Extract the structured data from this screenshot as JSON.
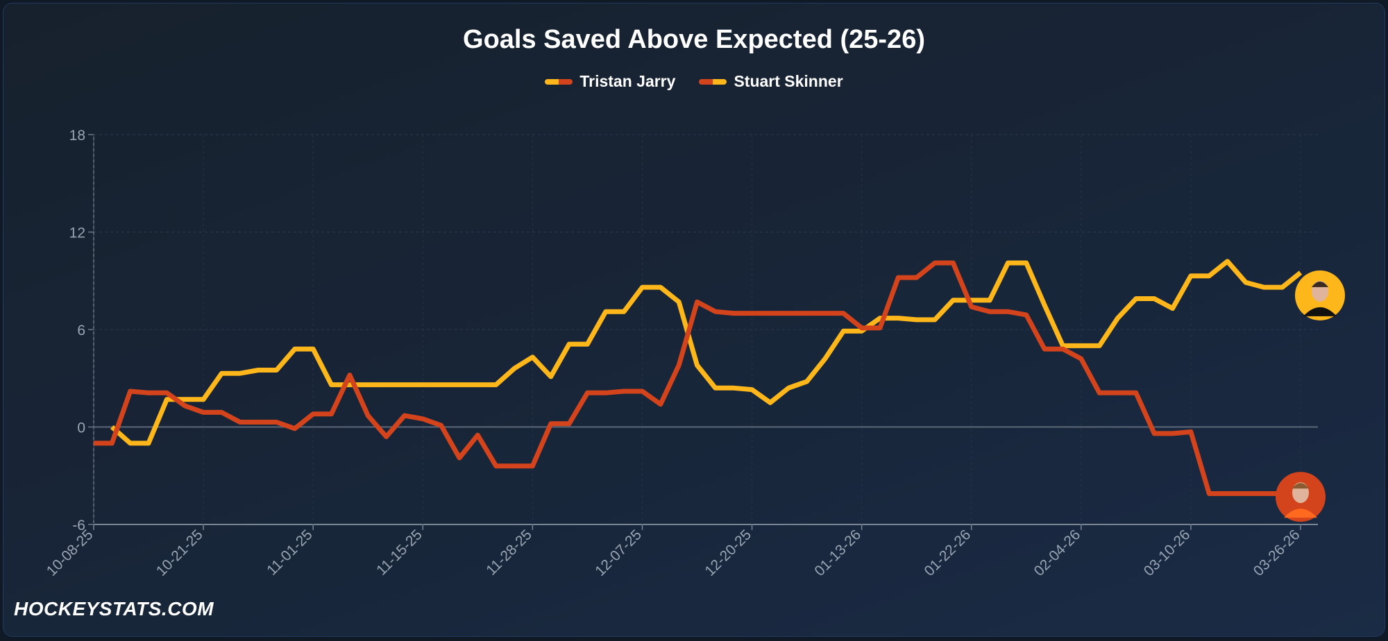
{
  "chart_data": {
    "type": "line",
    "title": "Goals Saved Above Expected (25-26)",
    "xlabel": "",
    "ylabel": "",
    "ylim": [
      -6,
      18
    ],
    "yticks": [
      -6,
      0,
      6,
      12,
      18
    ],
    "grid": true,
    "legend": "top-center",
    "x_count": 67,
    "xtick_labels": [
      {
        "index": 0,
        "label": "10-08-25"
      },
      {
        "index": 6,
        "label": "10-21-25"
      },
      {
        "index": 12,
        "label": "11-01-25"
      },
      {
        "index": 18,
        "label": "11-15-25"
      },
      {
        "index": 24,
        "label": "11-28-25"
      },
      {
        "index": 30,
        "label": "12-07-25"
      },
      {
        "index": 36,
        "label": "12-20-25"
      },
      {
        "index": 42,
        "label": "01-13-26"
      },
      {
        "index": 48,
        "label": "01-22-26"
      },
      {
        "index": 54,
        "label": "02-04-26"
      },
      {
        "index": 60,
        "label": "03-10-26"
      },
      {
        "index": 66,
        "label": "03-26-26"
      }
    ],
    "series": [
      {
        "name": "Tristan Jarry",
        "color": "#fdb71a",
        "values": [
          null,
          0,
          -1,
          -1,
          1.7,
          1.7,
          1.7,
          3.3,
          3.3,
          3.5,
          3.5,
          4.8,
          4.8,
          2.6,
          2.6,
          2.6,
          2.6,
          2.6,
          2.6,
          2.6,
          2.6,
          2.6,
          2.6,
          3.6,
          4.3,
          3.1,
          5.1,
          5.1,
          7.1,
          7.1,
          8.6,
          8.6,
          7.7,
          3.8,
          2.4,
          2.4,
          2.3,
          1.5,
          2.4,
          2.8,
          4.2,
          5.9,
          5.9,
          6.7,
          6.7,
          6.6,
          6.6,
          7.8,
          7.8,
          7.8,
          10.1,
          10.1,
          7.5,
          5,
          5,
          5,
          6.7,
          7.9,
          7.9,
          7.3,
          9.3,
          9.3,
          10.2,
          8.9,
          8.6,
          8.6,
          9.5
        ]
      },
      {
        "name": "Stuart Skinner",
        "color": "#d4441c",
        "values": [
          -1,
          -1,
          2.2,
          2.1,
          2.1,
          1.3,
          0.9,
          0.9,
          0.3,
          0.3,
          0.3,
          -0.1,
          0.8,
          0.8,
          3.2,
          0.7,
          -0.6,
          0.7,
          0.5,
          0.1,
          -1.9,
          -0.5,
          -2.4,
          -2.4,
          -2.4,
          0.2,
          0.2,
          2.1,
          2.1,
          2.2,
          2.2,
          1.4,
          3.8,
          7.7,
          7.1,
          7.0,
          7.0,
          7.0,
          7.0,
          7.0,
          7.0,
          7.0,
          6.1,
          6.1,
          9.2,
          9.2,
          10.1,
          10.1,
          7.4,
          7.1,
          7.1,
          6.9,
          4.8,
          4.8,
          4.2,
          2.1,
          2.1,
          2.1,
          -0.4,
          -0.4,
          -0.3,
          -4.1,
          -4.1,
          -4.1,
          -4.1,
          -4.1,
          null
        ]
      }
    ]
  },
  "watermark": "HOCKEYSTATS.COM"
}
